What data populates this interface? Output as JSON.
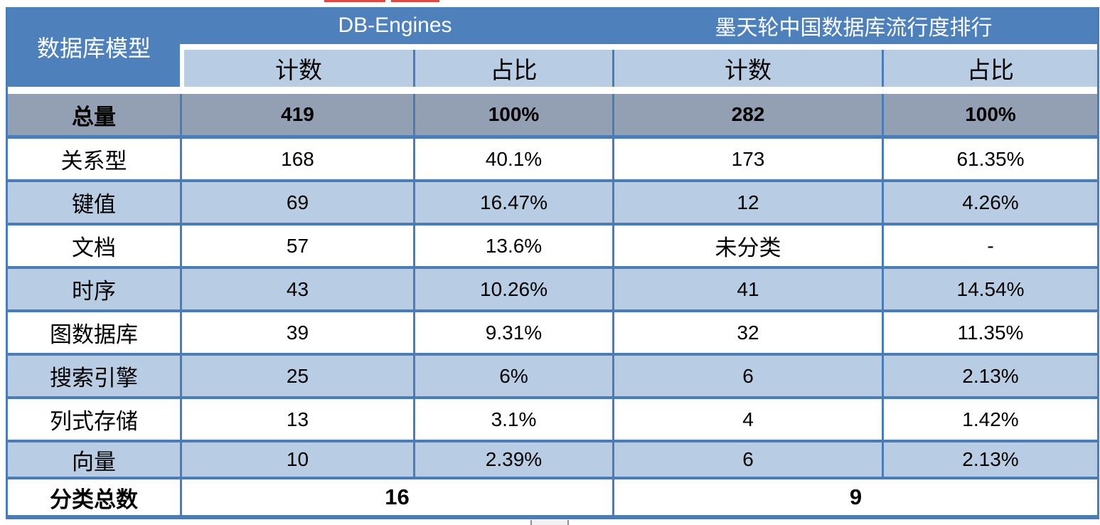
{
  "colors": {
    "header_blue": "#4e80bc",
    "border_blue": "#4a7cb8",
    "light_blue_row": "#b8cce4",
    "total_grey_row": "#939fb3",
    "text_black": "#000000",
    "header_text_white": "#ffffff",
    "red_marker": "#dd4a42"
  },
  "table": {
    "corner_header": "数据库模型",
    "group_headers": [
      {
        "label": "DB-Engines"
      },
      {
        "label": "墨天轮中国数据库流行度排行"
      }
    ],
    "sub_headers": [
      "计数",
      "占比",
      "计数",
      "占比"
    ],
    "total_row": {
      "label": "总量",
      "cells": [
        "419",
        "100%",
        "282",
        "100%"
      ]
    },
    "rows": [
      {
        "label": "关系型",
        "cells": [
          "168",
          "40.1%",
          "173",
          "61.35%"
        ]
      },
      {
        "label": "键值",
        "cells": [
          "69",
          "16.47%",
          "12",
          "4.26%"
        ]
      },
      {
        "label": "文档",
        "cells": [
          "57",
          "13.6%",
          "未分类",
          "-"
        ]
      },
      {
        "label": "时序",
        "cells": [
          "43",
          "10.26%",
          "41",
          "14.54%"
        ]
      },
      {
        "label": "图数据库",
        "cells": [
          "39",
          "9.31%",
          "32",
          "11.35%"
        ]
      },
      {
        "label": "搜索引擎",
        "cells": [
          "25",
          "6%",
          "6",
          "2.13%"
        ]
      },
      {
        "label": "列式存储",
        "cells": [
          "13",
          "3.1%",
          "4",
          "1.42%"
        ]
      },
      {
        "label": "向量",
        "cells": [
          "10",
          "2.39%",
          "6",
          "2.13%"
        ]
      }
    ],
    "footer_row": {
      "label": "分类总数",
      "db_engines_total": "16",
      "motianlun_total": "9"
    }
  },
  "chart_data": {
    "type": "table",
    "title": "",
    "column_groups": [
      "数据库模型",
      "DB-Engines",
      "墨天轮中国数据库流行度排行"
    ],
    "columns": [
      "数据库模型",
      "DB-Engines 计数",
      "DB-Engines 占比",
      "墨天轮 计数",
      "墨天轮 占比"
    ],
    "rows": [
      [
        "总量",
        "419",
        "100%",
        "282",
        "100%"
      ],
      [
        "关系型",
        "168",
        "40.1%",
        "173",
        "61.35%"
      ],
      [
        "键值",
        "69",
        "16.47%",
        "12",
        "4.26%"
      ],
      [
        "文档",
        "57",
        "13.6%",
        "未分类",
        "-"
      ],
      [
        "时序",
        "43",
        "10.26%",
        "41",
        "14.54%"
      ],
      [
        "图数据库",
        "39",
        "9.31%",
        "32",
        "11.35%"
      ],
      [
        "搜索引擎",
        "25",
        "6%",
        "6",
        "2.13%"
      ],
      [
        "列式存储",
        "13",
        "3.1%",
        "4",
        "1.42%"
      ],
      [
        "向量",
        "10",
        "2.39%",
        "6",
        "2.13%"
      ],
      [
        "分类总数",
        "16",
        "",
        "9",
        ""
      ]
    ]
  }
}
